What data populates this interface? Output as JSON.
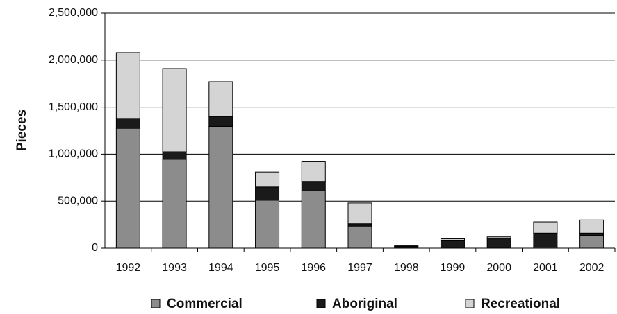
{
  "chart_data": {
    "type": "stacked_bar",
    "y_label": "Pieces",
    "categories": [
      "1992",
      "1993",
      "1994",
      "1995",
      "1996",
      "1997",
      "1998",
      "1999",
      "2000",
      "2001",
      "2002"
    ],
    "series": [
      {
        "name": "Commercial",
        "color": "#8c8c8c",
        "values": [
          1275000,
          945000,
          1295000,
          510000,
          610000,
          235000,
          0,
          0,
          0,
          10000,
          135000
        ]
      },
      {
        "name": "Aboriginal",
        "color": "#1a1a1a",
        "values": [
          105000,
          80000,
          105000,
          140000,
          100000,
          25000,
          20000,
          85000,
          105000,
          150000,
          25000
        ]
      },
      {
        "name": "Recreational",
        "color": "#d4d4d4",
        "values": [
          700000,
          885000,
          370000,
          160000,
          215000,
          220000,
          5000,
          15000,
          15000,
          120000,
          140000
        ]
      }
    ],
    "ylim": [
      0,
      2500000
    ],
    "yticks": [
      0,
      {
        "value": 500000,
        "label": "500,000"
      },
      {
        "value": 1000000,
        "label": "1,000,000"
      },
      {
        "value": 1500000,
        "label": "1,500,000"
      },
      {
        "value": 2000000,
        "label": "2,000,000"
      },
      {
        "value": 2500000,
        "label": "2,500,000"
      }
    ],
    "grid": true
  }
}
